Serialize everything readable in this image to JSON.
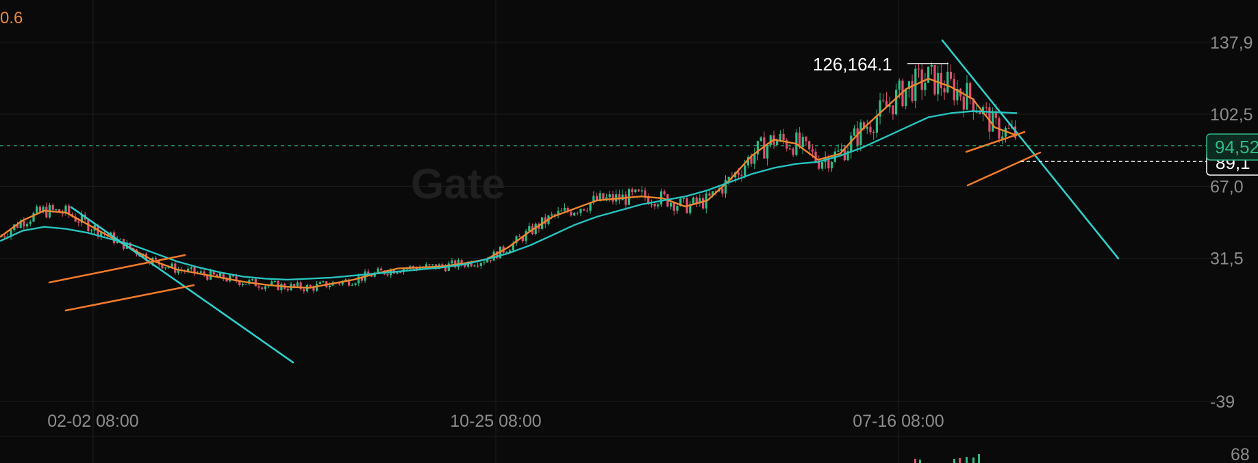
{
  "chart_data": {
    "type": "candlestick",
    "top_left_value": "0.6",
    "watermark": "Gate",
    "x_ticks": [
      "02-02 08:00",
      "10-25 08:00",
      "07-16 08:00"
    ],
    "y_ticks": [
      "137,9",
      "102,5",
      "67,0",
      "31,5",
      "-39"
    ],
    "volume_tick": "68",
    "ylim": [
      -39000,
      152000
    ],
    "grid": true,
    "current_price_label": "94,52",
    "current_price": 94520,
    "secondary_price_label": "89,1",
    "secondary_price": 89100,
    "high_annotation_label": "126,164.1",
    "high_annotation_value": 126164.1,
    "colors": {
      "up": "#2ebd85",
      "down": "#e0516e",
      "ma_fast": "#f0882e",
      "ma_slow": "#27c4c0",
      "trendline": "#2ed0cc",
      "channel": "#f27a2a",
      "background": "#0a0a0a",
      "grid": "#1e1e1e"
    },
    "series": [
      {
        "name": "",
        "role": "ma_fast",
        "values": [
          42000,
          50000,
          55000,
          54000,
          48000,
          42000,
          36000,
          30000,
          26000,
          24000,
          22000,
          20000,
          18500,
          17500,
          17000,
          19000,
          21000,
          24000,
          26500,
          27000,
          27500,
          29000,
          31000,
          37000,
          45000,
          52000,
          56000,
          60000,
          61000,
          62000,
          61000,
          57000,
          60000,
          70000,
          82000,
          90000,
          88000,
          80000,
          83000,
          95000,
          105000,
          115000,
          120000,
          116000,
          110000,
          96000,
          92000
        ]
      },
      {
        "name": "",
        "role": "ma_slow",
        "values": [
          40000,
          45000,
          47000,
          46000,
          44000,
          41000,
          38000,
          34000,
          30000,
          27000,
          24500,
          22500,
          21500,
          21000,
          21500,
          22000,
          23000,
          24000,
          25000,
          26000,
          27000,
          28500,
          31000,
          34000,
          38000,
          43000,
          48000,
          52000,
          55000,
          58000,
          60000,
          62000,
          65000,
          69000,
          73000,
          76000,
          78000,
          79000,
          82000,
          86000,
          91000,
          96000,
          101000,
          103000,
          104000,
          103500,
          103000
        ]
      }
    ],
    "trendlines": [
      {
        "kind": "descending",
        "from": [
          "2023-12",
          68000
        ],
        "to": [
          "2024-09",
          12500
        ]
      },
      {
        "kind": "channel-upper",
        "from": [
          "2024-01",
          43000
        ],
        "to": [
          "2024-04",
          56000
        ]
      },
      {
        "kind": "channel-lower",
        "from": [
          "2024-01",
          27000
        ],
        "to": [
          "2024-04",
          40000
        ]
      },
      {
        "kind": "descending",
        "from": [
          "2025-08",
          145000
        ],
        "to": [
          "2026-06",
          50000
        ]
      },
      {
        "kind": "channel-upper",
        "from": [
          "2025-11",
          92000
        ],
        "to": [
          "2026-01",
          103000
        ]
      },
      {
        "kind": "channel-lower",
        "from": [
          "2025-11",
          71000
        ],
        "to": [
          "2026-02",
          94000
        ]
      }
    ]
  }
}
